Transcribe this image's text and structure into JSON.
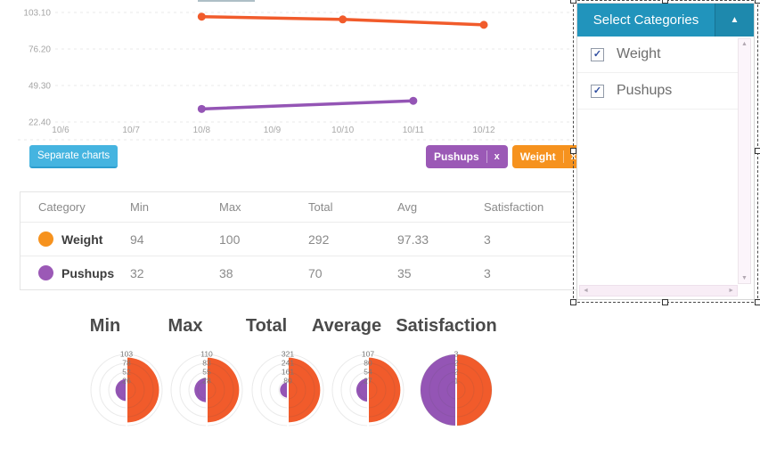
{
  "chart_data": [
    {
      "type": "line",
      "title": "",
      "x_categories": [
        "10/6",
        "10/7",
        "10/8",
        "10/9",
        "10/10",
        "10/11",
        "10/12"
      ],
      "y_tick_labels": [
        "103.10",
        "76.20",
        "49.30",
        "22.40"
      ],
      "y_tick_values": [
        103.1,
        76.2,
        49.3,
        22.4
      ],
      "ylim": [
        22.4,
        103.1
      ],
      "grid": "horizontal-dashed",
      "legend": "none",
      "series": [
        {
          "name": "Weight",
          "color": "#f15b2b",
          "points": [
            [
              "10/8",
              100
            ],
            [
              "10/10",
              98
            ],
            [
              "10/12",
              94
            ]
          ]
        },
        {
          "name": "Pushups",
          "color": "#9455b5",
          "points": [
            [
              "10/8",
              32
            ],
            [
              "10/11",
              38
            ]
          ]
        }
      ]
    },
    {
      "type": "half-pie",
      "title": "Min",
      "tick_labels": [
        "103",
        "78",
        "52",
        "26"
      ],
      "max": 103,
      "series": [
        {
          "name": "Weight",
          "side": "right",
          "color": "#f15b2b",
          "value": 94
        },
        {
          "name": "Pushups",
          "side": "left",
          "color": "#9455b5",
          "value": 32
        }
      ]
    },
    {
      "type": "half-pie",
      "title": "Max",
      "tick_labels": [
        "110",
        "83",
        "55",
        "28"
      ],
      "max": 110,
      "series": [
        {
          "name": "Weight",
          "side": "right",
          "color": "#f15b2b",
          "value": 100
        },
        {
          "name": "Pushups",
          "side": "left",
          "color": "#9455b5",
          "value": 38
        }
      ]
    },
    {
      "type": "half-pie",
      "title": "Total",
      "tick_labels": [
        "321",
        "241",
        "161",
        "80"
      ],
      "max": 321,
      "series": [
        {
          "name": "Weight",
          "side": "right",
          "color": "#f15b2b",
          "value": 292
        },
        {
          "name": "Pushups",
          "side": "left",
          "color": "#9455b5",
          "value": 70
        }
      ]
    },
    {
      "type": "half-pie",
      "title": "Average",
      "tick_labels": [
        "107",
        "80",
        "54",
        "27"
      ],
      "max": 107,
      "series": [
        {
          "name": "Weight",
          "side": "right",
          "color": "#f15b2b",
          "value": 97.33
        },
        {
          "name": "Pushups",
          "side": "left",
          "color": "#9455b5",
          "value": 35
        }
      ]
    },
    {
      "type": "half-pie",
      "title": "Satisfaction",
      "tick_labels": [
        "3",
        "2",
        "2",
        "1"
      ],
      "max": 3,
      "series": [
        {
          "name": "Weight",
          "side": "right",
          "color": "#f15b2b",
          "value": 3
        },
        {
          "name": "Pushups",
          "side": "left",
          "color": "#9455b5",
          "value": 3
        }
      ]
    }
  ],
  "controls": {
    "separate_charts_label": "Separate charts",
    "tags": [
      {
        "label": "Pushups",
        "close_label": "x",
        "color": "#9b59b6"
      },
      {
        "label": "Weight",
        "close_label": "x",
        "color": "#f6921e"
      }
    ]
  },
  "table": {
    "headers": [
      "Category",
      "Min",
      "Max",
      "Total",
      "Avg",
      "Satisfaction"
    ],
    "rows": [
      {
        "category": "Weight",
        "dot_color": "#f6921e",
        "values": [
          "94",
          "100",
          "292",
          "97.33",
          "3"
        ]
      },
      {
        "category": "Pushups",
        "dot_color": "#9b59b6",
        "values": [
          "32",
          "38",
          "70",
          "35",
          "3"
        ]
      }
    ]
  },
  "panel": {
    "title": "Select Categories",
    "collapse_icon": "▲",
    "scroll_up_icon": "▲",
    "scroll_down_icon": "▼",
    "scroll_left_icon": "◄",
    "scroll_right_icon": "►",
    "check_glyph": "✓",
    "items": [
      {
        "label": "Weight",
        "checked": true
      },
      {
        "label": "Pushups",
        "checked": true
      }
    ]
  },
  "colors": {
    "accent_teal": "#2194bc",
    "button_blue": "#45b4e0",
    "weight_orange": "#f15b2b",
    "pushups_purple": "#9455b5",
    "tag_orange": "#f6921e",
    "tag_purple": "#9b59b6"
  }
}
